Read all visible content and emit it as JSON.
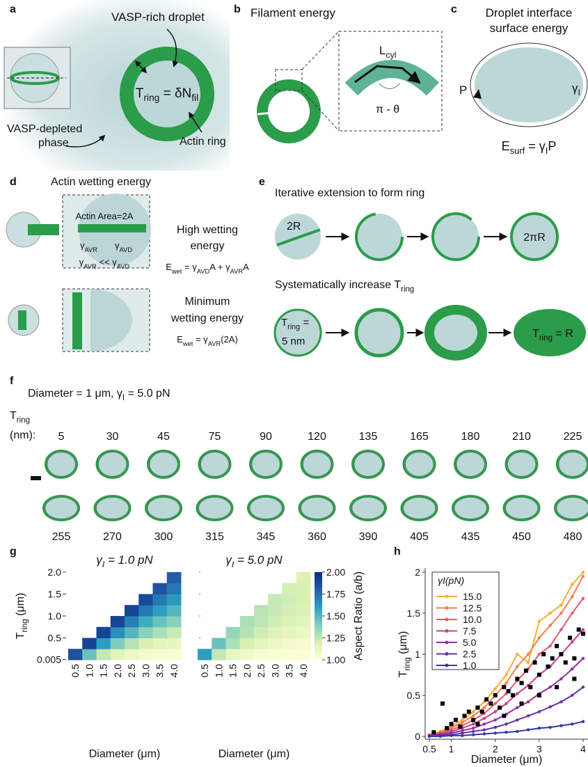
{
  "panels": {
    "a": {
      "letter": "a",
      "droplet": "VASP-rich droplet",
      "eq": [
        "T",
        "ring",
        " = δN",
        "fil"
      ],
      "ring": "Actin ring",
      "depleted": [
        "VASP-depleted",
        "phase"
      ]
    },
    "b": {
      "letter": "b",
      "title": "Filament energy",
      "length": [
        "L",
        "cyl"
      ],
      "angle": "π - θ"
    },
    "c": {
      "letter": "c",
      "title": [
        "Droplet interface",
        "surface energy"
      ],
      "perimeter": "P",
      "tension": [
        "γ",
        "I"
      ],
      "eq": [
        "E",
        "surf",
        " = γ",
        "I",
        "P"
      ]
    },
    "d": {
      "letter": "d",
      "title": "Actin wetting energy",
      "area": "Actin Area=2A",
      "avr": [
        "γ",
        "AVR"
      ],
      "avd": [
        "γ",
        "AVD"
      ],
      "relation": [
        "γ",
        "AVR",
        " << γ",
        "AVD"
      ],
      "high": [
        "High wetting",
        "energy"
      ],
      "high_eq": [
        "E",
        "wet",
        " = γ",
        "AVD",
        "A + γ",
        "AVR",
        "A"
      ],
      "min": [
        "Minimum",
        "wetting energy"
      ],
      "min_eq": [
        "E",
        "wet",
        " = γ",
        "AVR",
        "(2A)"
      ]
    },
    "e": {
      "letter": "e",
      "extension": "Iterative extension to form ring",
      "start": "2R",
      "end": "2πR",
      "increase": [
        "Systematically increase T",
        "ring"
      ],
      "first": [
        "T",
        "ring",
        " ="
      ],
      "first_value": "5 nm",
      "last": [
        "T",
        "ring",
        " = R"
      ]
    },
    "f": {
      "letter": "f",
      "title": [
        "Diameter = 1 μm, γ",
        "I",
        " = 5.0 pN"
      ],
      "label": [
        "T",
        "ring"
      ],
      "unit": "(nm):",
      "top": [
        5,
        30,
        45,
        75,
        90,
        120,
        135,
        165,
        180,
        210,
        225
      ],
      "bottom": [
        255,
        270,
        300,
        315,
        345,
        360,
        390,
        405,
        435,
        450,
        480
      ]
    },
    "g": {
      "letter": "g"
    },
    "h": {
      "letter": "h"
    }
  },
  "chart_data": [
    {
      "type": "heatmap",
      "title": [
        "γ",
        "I",
        " = 1.0 pN"
      ],
      "xlabel": "Diameter (μm)",
      "ylabel": [
        "T",
        "ring",
        " (μm)"
      ],
      "categories": [
        "0.5",
        "1.0",
        "1.5",
        "2.0",
        "2.5",
        "3.0",
        "3.5",
        "4.0"
      ],
      "y": [
        0.125,
        0.375,
        0.625,
        0.875,
        1.125,
        1.375,
        1.625,
        1.875
      ],
      "ylim": [
        0,
        2
      ],
      "yticks": [
        0.005,
        0.5,
        {
          "value": 1,
          "label": "1.0"
        },
        1.5,
        {
          "value": 2,
          "label": "2.0"
        }
      ],
      "values": [
        [
          1.85,
          1.45,
          1.25,
          1.15,
          1.1,
          1.06,
          1.04,
          1.03
        ],
        [
          null,
          1.9,
          1.6,
          1.4,
          1.28,
          1.2,
          1.15,
          1.12
        ],
        [
          null,
          null,
          1.9,
          1.65,
          1.5,
          1.38,
          1.3,
          1.24
        ],
        [
          null,
          null,
          null,
          1.9,
          1.7,
          1.55,
          1.45,
          1.38
        ],
        [
          null,
          null,
          null,
          null,
          1.9,
          1.72,
          1.6,
          1.5
        ],
        [
          null,
          null,
          null,
          null,
          null,
          1.88,
          1.72,
          1.62
        ],
        [
          null,
          null,
          null,
          null,
          null,
          null,
          1.85,
          1.72
        ],
        [
          null,
          null,
          null,
          null,
          null,
          null,
          null,
          1.8
        ]
      ]
    },
    {
      "type": "heatmap",
      "title": [
        "γ",
        "I",
        " = 5.0 pN"
      ],
      "xlabel": "Diameter (μm)",
      "categories": [
        "0.5",
        "1.0",
        "1.5",
        "2.0",
        "2.5",
        "3.0",
        "3.5",
        "4.0"
      ],
      "y": [
        0.125,
        0.375,
        0.625,
        0.875,
        1.125,
        1.375,
        1.625,
        1.875
      ],
      "ylim": [
        0,
        2
      ],
      "values": [
        [
          1.6,
          1.25,
          1.12,
          1.07,
          1.04,
          1.03,
          1.02,
          1.01
        ],
        [
          null,
          1.45,
          1.3,
          1.2,
          1.14,
          1.1,
          1.07,
          1.05
        ],
        [
          null,
          null,
          1.35,
          1.28,
          1.22,
          1.17,
          1.13,
          1.1
        ],
        [
          null,
          null,
          null,
          1.3,
          1.26,
          1.22,
          1.18,
          1.15
        ],
        [
          null,
          null,
          null,
          null,
          1.27,
          1.24,
          1.21,
          1.18
        ],
        [
          null,
          null,
          null,
          null,
          null,
          1.24,
          1.22,
          1.2
        ],
        [
          null,
          null,
          null,
          null,
          null,
          null,
          1.21,
          1.2
        ],
        [
          null,
          null,
          null,
          null,
          null,
          null,
          null,
          1.18
        ]
      ],
      "colorbar": {
        "label": "Aspect Ratio (a/b)",
        "range": [
          1,
          2
        ],
        "colors": [
          "#ffffd9",
          "#d9f0b3",
          "#7fcdbb",
          "#2c9fc1",
          "#225ea8",
          "#0c2c84"
        ],
        "ticks": [
          {
            "value": 2,
            "label": "2.00"
          },
          {
            "value": 1.75,
            "label": "1.75"
          },
          {
            "value": 1.5,
            "label": "1.50"
          },
          {
            "value": 1.25,
            "label": "1.25"
          },
          {
            "value": 1,
            "label": "1.00"
          }
        ]
      }
    },
    {
      "type": "line",
      "xlabel": "Diameter (μm)",
      "ylabel": [
        "T",
        "ring",
        " (μm)"
      ],
      "legend_title": "γI(pN)",
      "legend": "upper left",
      "xlim": [
        0.5,
        4
      ],
      "ylim": [
        0,
        2
      ],
      "xticks": [
        0.5,
        1,
        2,
        3,
        4
      ],
      "yticks": [
        0,
        0.5,
        1,
        1.5,
        2
      ],
      "x": [
        0.5,
        0.75,
        1,
        1.25,
        1.5,
        1.75,
        2,
        2.25,
        2.5,
        2.75,
        3,
        3.25,
        3.5,
        3.75,
        4
      ],
      "series": [
        {
          "name": "15.0",
          "color": "#f6b02e",
          "values": [
            0.02,
            0.06,
            0.12,
            0.2,
            0.3,
            0.42,
            0.58,
            0.75,
            1.0,
            0.9,
            1.4,
            1.5,
            1.6,
            1.85,
            2.0
          ]
        },
        {
          "name": "12.5",
          "color": "#f3804f",
          "values": [
            0.02,
            0.05,
            0.1,
            0.17,
            0.25,
            0.35,
            0.5,
            0.65,
            0.85,
            1.0,
            1.2,
            1.35,
            1.5,
            1.7,
            1.95
          ]
        },
        {
          "name": "10.0",
          "color": "#e65a6e",
          "values": [
            0.01,
            0.04,
            0.08,
            0.13,
            0.2,
            0.28,
            0.4,
            0.52,
            0.68,
            0.82,
            1.0,
            1.1,
            1.3,
            1.5,
            1.68
          ]
        },
        {
          "name": "7.5",
          "color": "#c4408a",
          "values": [
            0.01,
            0.03,
            0.06,
            0.1,
            0.15,
            0.22,
            0.3,
            0.4,
            0.52,
            0.62,
            0.75,
            0.85,
            1.0,
            1.15,
            1.3
          ]
        },
        {
          "name": "5.0",
          "color": "#9330a0",
          "values": [
            0.01,
            0.02,
            0.04,
            0.07,
            0.1,
            0.15,
            0.2,
            0.27,
            0.35,
            0.42,
            0.52,
            0.6,
            0.7,
            0.82,
            0.95
          ]
        },
        {
          "name": "2.5",
          "color": "#6330a8",
          "values": [
            0,
            0.01,
            0.02,
            0.04,
            0.06,
            0.08,
            0.11,
            0.15,
            0.2,
            0.25,
            0.3,
            0.36,
            0.42,
            0.5,
            0.6
          ]
        },
        {
          "name": "1.0",
          "color": "#3239a8",
          "values": [
            0,
            0,
            0.01,
            0.01,
            0.02,
            0.03,
            0.04,
            0.05,
            0.06,
            0.08,
            0.1,
            0.11,
            0.13,
            0.15,
            0.18
          ]
        }
      ],
      "points_color": "#000000",
      "points_x": [
        0.6,
        0.8,
        0.9,
        1.0,
        1.1,
        1.2,
        1.3,
        1.4,
        1.5,
        1.6,
        1.7,
        1.8,
        1.9,
        2.0,
        2.1,
        2.2,
        2.3,
        2.4,
        2.5,
        2.6,
        2.7,
        2.8,
        2.9,
        3.0,
        3.1,
        3.2,
        3.3,
        3.4,
        3.5,
        3.6,
        3.7,
        3.8,
        3.9,
        4.0,
        2.2,
        2.6,
        3.0,
        3.4,
        3.8,
        1.6
      ],
      "points_y": [
        0.05,
        0.4,
        0.1,
        0.15,
        0.2,
        0.12,
        0.25,
        0.3,
        0.2,
        0.35,
        0.3,
        0.45,
        0.4,
        0.5,
        0.35,
        0.6,
        0.55,
        0.5,
        0.7,
        0.65,
        0.8,
        0.6,
        0.9,
        0.75,
        1.0,
        0.85,
        0.95,
        1.1,
        1.0,
        0.9,
        1.2,
        0.95,
        1.3,
        1.25,
        0.25,
        0.4,
        0.5,
        0.6,
        0.7,
        0.15
      ]
    }
  ]
}
